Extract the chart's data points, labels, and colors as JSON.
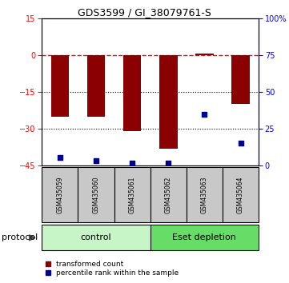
{
  "title": "GDS3599 / GI_38079761-S",
  "samples": [
    "GSM435059",
    "GSM435060",
    "GSM435061",
    "GSM435062",
    "GSM435063",
    "GSM435064"
  ],
  "red_values": [
    -25,
    -25,
    -31,
    -38,
    0.5,
    -20
  ],
  "blue_values": [
    5.5,
    3.5,
    1.5,
    1.5,
    35,
    15
  ],
  "ylim_left": [
    -45,
    15
  ],
  "ylim_right": [
    0,
    100
  ],
  "yticks_left": [
    -45,
    -30,
    -15,
    0,
    15
  ],
  "yticks_right": [
    0,
    25,
    50,
    75,
    100
  ],
  "groups": [
    {
      "label": "control",
      "indices": [
        0,
        1,
        2
      ],
      "color": "#c8f5c8"
    },
    {
      "label": "Eset depletion",
      "indices": [
        3,
        4,
        5
      ],
      "color": "#66dd66"
    }
  ],
  "red_color": "#8b0000",
  "blue_color": "#00008b",
  "bar_width": 0.5,
  "protocol_label": "protocol",
  "legend_red": "transformed count",
  "legend_blue": "percentile rank within the sample",
  "sample_box_color": "#c8c8c8"
}
